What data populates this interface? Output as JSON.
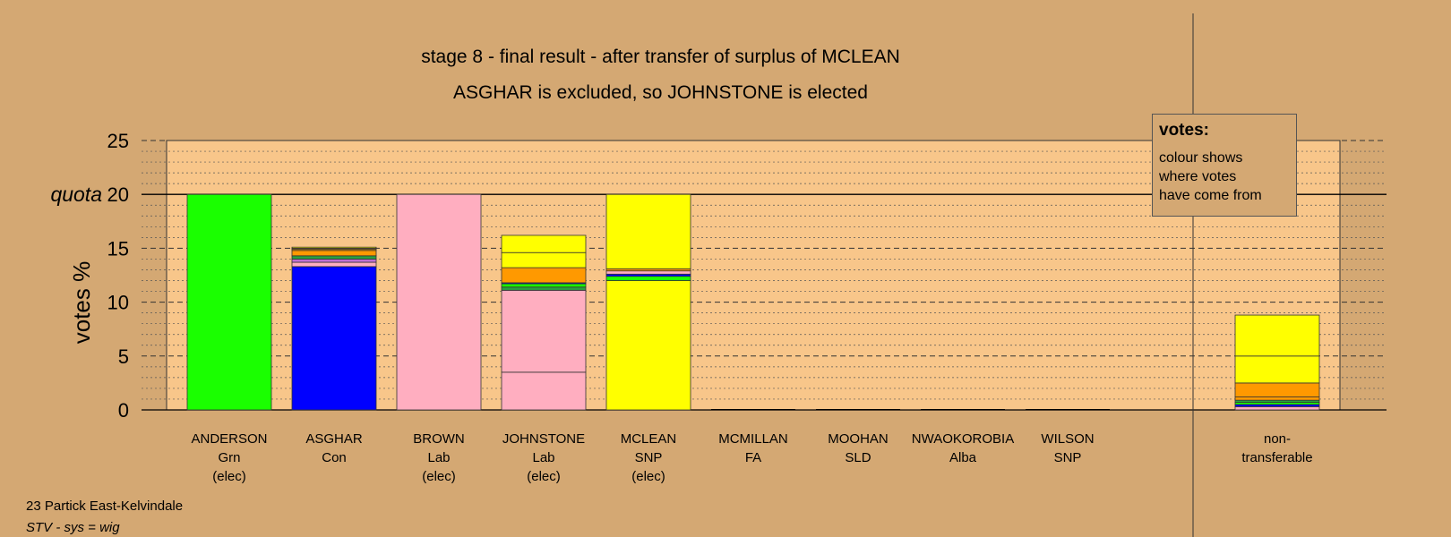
{
  "title": "stage 8 - final result - after transfer of surplus of MCLEAN",
  "subtitle": "ASGHAR is excluded, so JOHNSTONE is elected",
  "footer": {
    "ward": "23 Partick East-Kelvindale",
    "system": "STV - sys = wig"
  },
  "legend": {
    "title": "votes:",
    "lines": [
      "colour shows",
      "where votes",
      "have come from"
    ]
  },
  "colors": {
    "background": "#d4a873",
    "plot_area": "#f8c68a",
    "Grn": "#1aff00",
    "Con": "#0000ff",
    "Lab": "#ffaec0",
    "SNP": "#ffff00",
    "Alba": "#ff9900",
    "LD": "#ffaa00",
    "Purple": "#c070d0",
    "Green_dark": "#2aa040"
  },
  "chart_data": {
    "type": "bar",
    "stacked": true,
    "title": "stage 8 - final result - after transfer of surplus of MCLEAN",
    "subtitle": "ASGHAR is excluded, so JOHNSTONE is elected",
    "ylabel": "votes %",
    "ylim": [
      0,
      25
    ],
    "yticks": [
      0,
      5,
      10,
      15,
      20,
      25
    ],
    "quota": 20,
    "quota_label": "quota",
    "grid": true,
    "categories": [
      {
        "name": "ANDERSON",
        "party": "Grn",
        "status": "(elec)"
      },
      {
        "name": "ASGHAR",
        "party": "Con",
        "status": ""
      },
      {
        "name": "BROWN",
        "party": "Lab",
        "status": "(elec)"
      },
      {
        "name": "JOHNSTONE",
        "party": "Lab",
        "status": "(elec)"
      },
      {
        "name": "MCLEAN",
        "party": "SNP",
        "status": "(elec)"
      },
      {
        "name": "MCMILLAN",
        "party": "FA",
        "status": ""
      },
      {
        "name": "MOOHAN",
        "party": "SLD",
        "status": ""
      },
      {
        "name": "NWAOKOROBIA",
        "party": "Alba",
        "status": ""
      },
      {
        "name": "WILSON",
        "party": "SNP",
        "status": ""
      },
      {
        "name": "non-",
        "party": "transferable",
        "status": ""
      }
    ],
    "stacks": [
      [
        {
          "v": 20.0,
          "c": "#1aff00"
        }
      ],
      [
        {
          "v": 13.3,
          "c": "#0000ff"
        },
        {
          "v": 0.4,
          "c": "#ffaec0"
        },
        {
          "v": 0.3,
          "c": "#c070d0"
        },
        {
          "v": 0.3,
          "c": "#2aa040"
        },
        {
          "v": 0.5,
          "c": "#ff9900"
        },
        {
          "v": 0.1,
          "c": "#ff9900"
        },
        {
          "v": 0.1,
          "c": "#ffaa00"
        },
        {
          "v": 0.1,
          "c": "#ffff00"
        }
      ],
      [
        {
          "v": 20.0,
          "c": "#ffaec0"
        }
      ],
      [
        {
          "v": 3.5,
          "c": "#ffaec0"
        },
        {
          "v": 7.6,
          "c": "#ffaec0"
        },
        {
          "v": 0.3,
          "c": "#2aa040"
        },
        {
          "v": 0.3,
          "c": "#1aff00"
        },
        {
          "v": 0.1,
          "c": "#0000ff"
        },
        {
          "v": 1.4,
          "c": "#ff9900"
        },
        {
          "v": 1.4,
          "c": "#ffff00"
        },
        {
          "v": 1.6,
          "c": "#ffff00"
        }
      ],
      [
        {
          "v": 12.0,
          "c": "#ffff00"
        },
        {
          "v": 0.4,
          "c": "#1aff00"
        },
        {
          "v": 0.2,
          "c": "#0000ff"
        },
        {
          "v": 0.3,
          "c": "#ffaec0"
        },
        {
          "v": 0.2,
          "c": "#ff9900"
        },
        {
          "v": 6.9,
          "c": "#ffff00"
        }
      ],
      [],
      [],
      [],
      [],
      [
        {
          "v": 0.3,
          "c": "#ffaec0"
        },
        {
          "v": 0.2,
          "c": "#0000ff"
        },
        {
          "v": 0.2,
          "c": "#1aff00"
        },
        {
          "v": 0.2,
          "c": "#2aa040"
        },
        {
          "v": 0.3,
          "c": "#ff9900"
        },
        {
          "v": 1.3,
          "c": "#ff9900"
        },
        {
          "v": 2.5,
          "c": "#ffff00"
        },
        {
          "v": 3.8,
          "c": "#ffff00"
        }
      ]
    ]
  }
}
